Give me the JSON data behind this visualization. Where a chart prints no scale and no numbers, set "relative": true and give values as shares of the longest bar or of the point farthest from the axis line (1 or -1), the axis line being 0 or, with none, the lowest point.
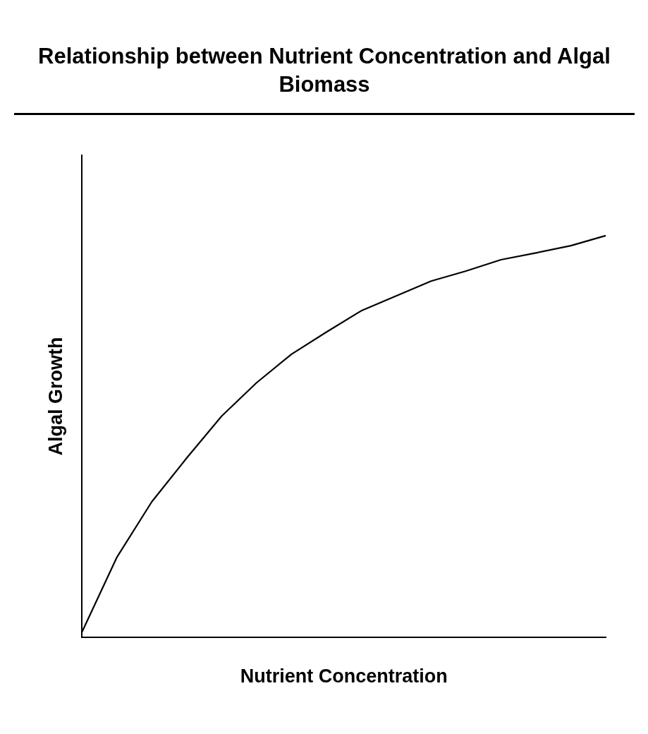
{
  "chart_data": {
    "type": "line",
    "title": "Relationship between Nutrient Concentration and Algal Biomass",
    "xlabel": "Nutrient Concentration",
    "ylabel": "Algal Growth",
    "relative": true,
    "grid": false,
    "legend": false,
    "marker": "none",
    "categories": [
      null,
      null,
      null,
      null,
      null,
      null,
      null,
      null,
      null,
      null,
      null,
      null,
      null,
      null,
      null,
      null
    ],
    "series": [
      {
        "color": "#000000",
        "values": [
          0.014,
          0.2,
          0.338,
          0.447,
          0.551,
          0.634,
          0.705,
          0.76,
          0.813,
          0.85,
          0.887,
          0.912,
          0.94,
          0.957,
          0.975,
          1.0
        ]
      }
    ]
  }
}
